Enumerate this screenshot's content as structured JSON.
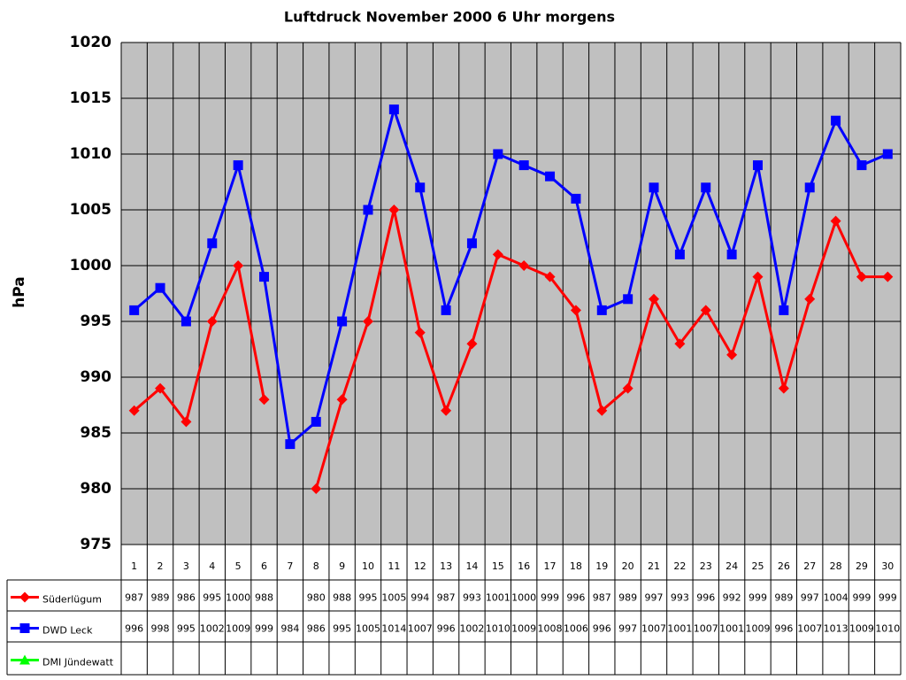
{
  "chart_data": {
    "type": "line",
    "title": "Luftdruck November 2000 6 Uhr morgens",
    "ylabel": "hPa",
    "categories": [
      "1",
      "2",
      "3",
      "4",
      "5",
      "6",
      "7",
      "8",
      "9",
      "10",
      "11",
      "12",
      "13",
      "14",
      "15",
      "16",
      "17",
      "18",
      "19",
      "20",
      "21",
      "22",
      "23",
      "24",
      "25",
      "26",
      "27",
      "28",
      "29",
      "30"
    ],
    "series": [
      {
        "name": "Süderlügum",
        "color": "#ff0000",
        "marker": "diamond",
        "values": [
          987,
          989,
          986,
          995,
          1000,
          988,
          null,
          980,
          988,
          995,
          1005,
          994,
          987,
          993,
          1001,
          1000,
          999,
          996,
          987,
          989,
          997,
          993,
          996,
          992,
          999,
          989,
          997,
          1004,
          999,
          999
        ]
      },
      {
        "name": "DWD Leck",
        "color": "#0000ff",
        "marker": "square",
        "values": [
          996,
          998,
          995,
          1002,
          1009,
          999,
          984,
          986,
          995,
          1005,
          1014,
          1007,
          996,
          1002,
          1010,
          1009,
          1008,
          1006,
          996,
          997,
          1007,
          1001,
          1007,
          1001,
          1009,
          996,
          1007,
          1013,
          1009,
          1010
        ]
      },
      {
        "name": "DMI Jündewatt",
        "color": "#00ff00",
        "marker": "triangle",
        "values": [
          null,
          null,
          null,
          null,
          null,
          null,
          null,
          null,
          null,
          null,
          null,
          null,
          null,
          null,
          null,
          null,
          null,
          null,
          null,
          null,
          null,
          null,
          null,
          null,
          null,
          null,
          null,
          null,
          null,
          null
        ]
      }
    ],
    "ylim": [
      975,
      1020
    ],
    "yticks": [
      975,
      980,
      985,
      990,
      995,
      1000,
      1005,
      1010,
      1015,
      1020
    ],
    "grid": true
  }
}
